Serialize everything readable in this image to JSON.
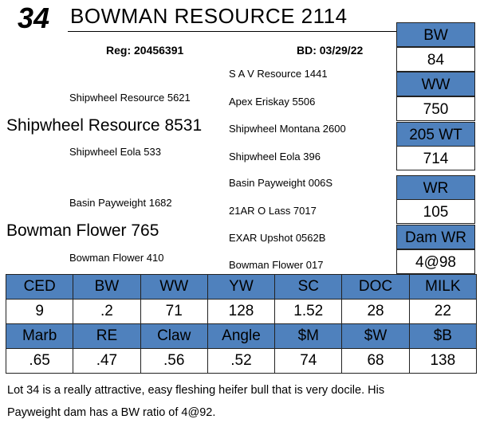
{
  "lot": "34",
  "title": "BOWMAN RESOURCE 2114",
  "registration": "Reg: 20456391",
  "birth_date": "BD: 03/29/22",
  "pedigree": {
    "sire": "Shipwheel Resource 8531",
    "sire_sire": "Shipwheel Resource 5621",
    "sire_sire_sire": "S A V Resource 1441",
    "sire_sire_dam": "Apex Eriskay 5506",
    "sire_dam": "Shipwheel Eola 533",
    "sire_dam_sire": "Shipwheel Montana 2600",
    "sire_dam_dam": "Shipwheel Eola 396",
    "dam": "Bowman Flower 765",
    "dam_sire": "Basin Payweight 1682",
    "dam_sire_sire": "Basin Payweight 006S",
    "dam_sire_dam": "21AR O Lass 7017",
    "dam_dam": "Bowman Flower 410",
    "dam_dam_sire": "EXAR Upshot 0562B",
    "dam_dam_dam": "Bowman Flower 017"
  },
  "side_stats": [
    {
      "label": "BW",
      "value": "84"
    },
    {
      "label": "WW",
      "value": "750"
    },
    {
      "label": "205 WT",
      "value": "714"
    },
    {
      "label": "WR",
      "value": "105"
    },
    {
      "label": "Dam WR",
      "value": "4@98"
    }
  ],
  "epd_table": {
    "rows": [
      [
        "CED",
        "BW",
        "WW",
        "YW",
        "SC",
        "DOC",
        "MILK"
      ],
      [
        "9",
        ".2",
        "71",
        "128",
        "1.52",
        "28",
        "22"
      ],
      [
        "Marb",
        "RE",
        "Claw",
        "Angle",
        "$M",
        "$W",
        "$B"
      ],
      [
        ".65",
        ".47",
        ".56",
        ".52",
        "74",
        "68",
        "138"
      ]
    ]
  },
  "comments": [
    "Lot 34 is a really attractive, easy fleshing heifer bull that is very docile.  His",
    "Payweight dam has a BW ratio of 4@92."
  ]
}
